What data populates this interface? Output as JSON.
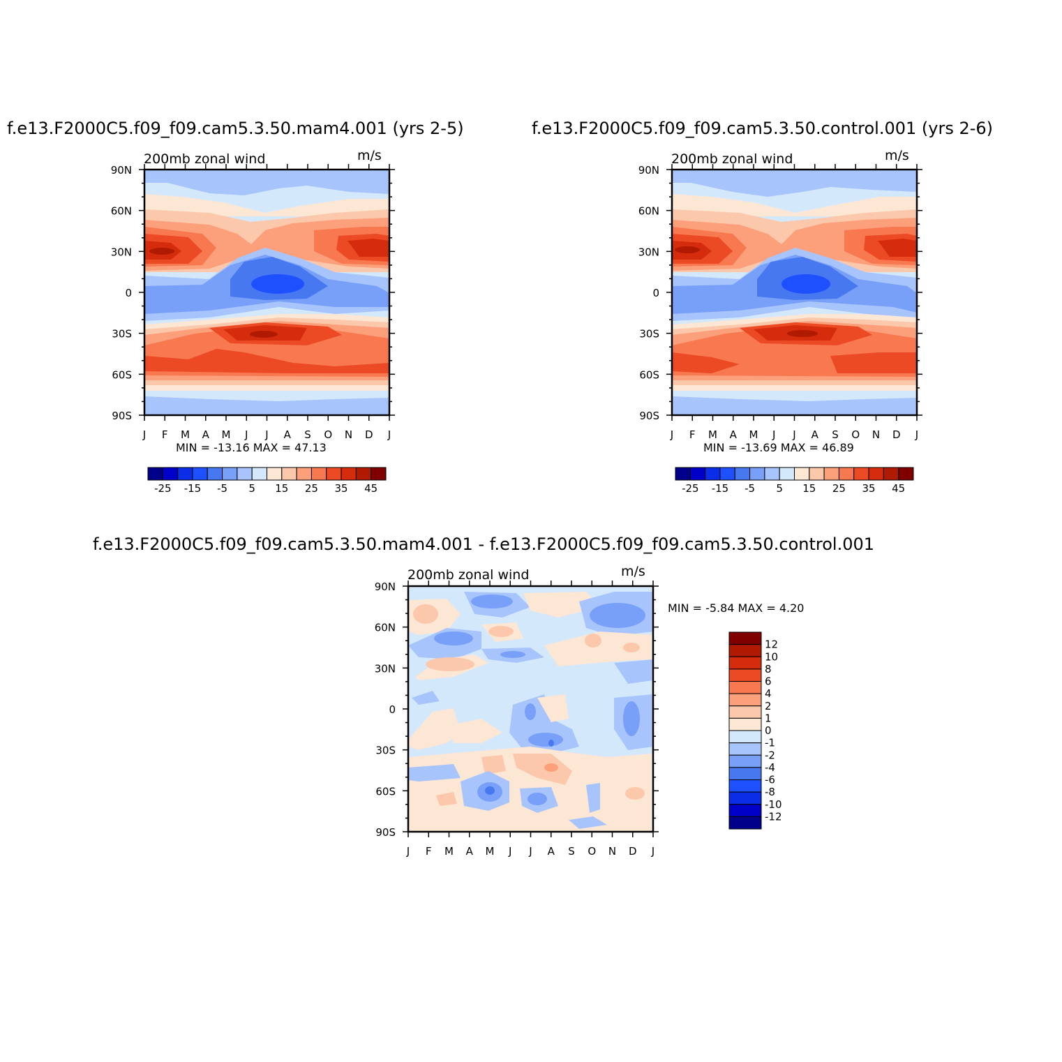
{
  "palette": [
    "#00008b",
    "#0000c8",
    "#0a2ee8",
    "#1e50ff",
    "#4878f0",
    "#78a0f8",
    "#a8c4fc",
    "#d4e8fc",
    "#fce6d4",
    "#fcc8ac",
    "#fca07c",
    "#f87850",
    "#ec4a24",
    "#d42c0c",
    "#b01a00",
    "#800000"
  ],
  "months": [
    "J",
    "F",
    "M",
    "A",
    "M",
    "J",
    "J",
    "A",
    "S",
    "O",
    "N",
    "D",
    "J"
  ],
  "lat_labels": [
    "90N",
    "60N",
    "30N",
    "0",
    "30S",
    "60S",
    "90S"
  ],
  "chart_data": [
    {
      "type": "heatmap",
      "title": "f.e13.F2000C5.f09_f09.cam5.3.50.mam4.001  (yrs  2-5)",
      "subtitle": "200mb  zonal  wind",
      "units": "m/s",
      "stats": "MIN  =  -13.16  MAX  =    47.13",
      "min": -13.16,
      "max": 47.13,
      "colorbar_labels": [
        "-25",
        "-15",
        "-5",
        "5",
        "15",
        "25",
        "35",
        "45"
      ],
      "contour_levels": [
        -30,
        -25,
        -20,
        -15,
        -10,
        -5,
        0,
        5,
        10,
        15,
        20,
        25,
        30,
        35,
        40,
        45
      ]
    },
    {
      "type": "heatmap",
      "title": "f.e13.F2000C5.f09_f09.cam5.3.50.control.001  (yrs  2-6)",
      "subtitle": "200mb  zonal  wind",
      "units": "m/s",
      "stats": "MIN  =  -13.69  MAX  =    46.89",
      "min": -13.69,
      "max": 46.89,
      "colorbar_labels": [
        "-25",
        "-15",
        "-5",
        "5",
        "15",
        "25",
        "35",
        "45"
      ],
      "contour_levels": [
        -30,
        -25,
        -20,
        -15,
        -10,
        -5,
        0,
        5,
        10,
        15,
        20,
        25,
        30,
        35,
        40,
        45
      ]
    },
    {
      "type": "heatmap",
      "title": "f.e13.F2000C5.f09_f09.cam5.3.50.mam4.001  -  f.e13.F2000C5.f09_f09.cam5.3.50.control.001",
      "subtitle": "200mb  zonal  wind",
      "units": "m/s",
      "stats": "MIN  =    -5.84  MAX  =      4.20",
      "min": -5.84,
      "max": 4.2,
      "colorbar_labels": [
        "12",
        "10",
        "8",
        "6",
        "4",
        "2",
        "1",
        "0",
        "-1",
        "-2",
        "-4",
        "-6",
        "-8",
        "-10",
        "-12"
      ],
      "contour_levels": [
        -12,
        -10,
        -8,
        -6,
        -4,
        -2,
        -1,
        0,
        1,
        2,
        4,
        6,
        8,
        10,
        12
      ]
    }
  ]
}
